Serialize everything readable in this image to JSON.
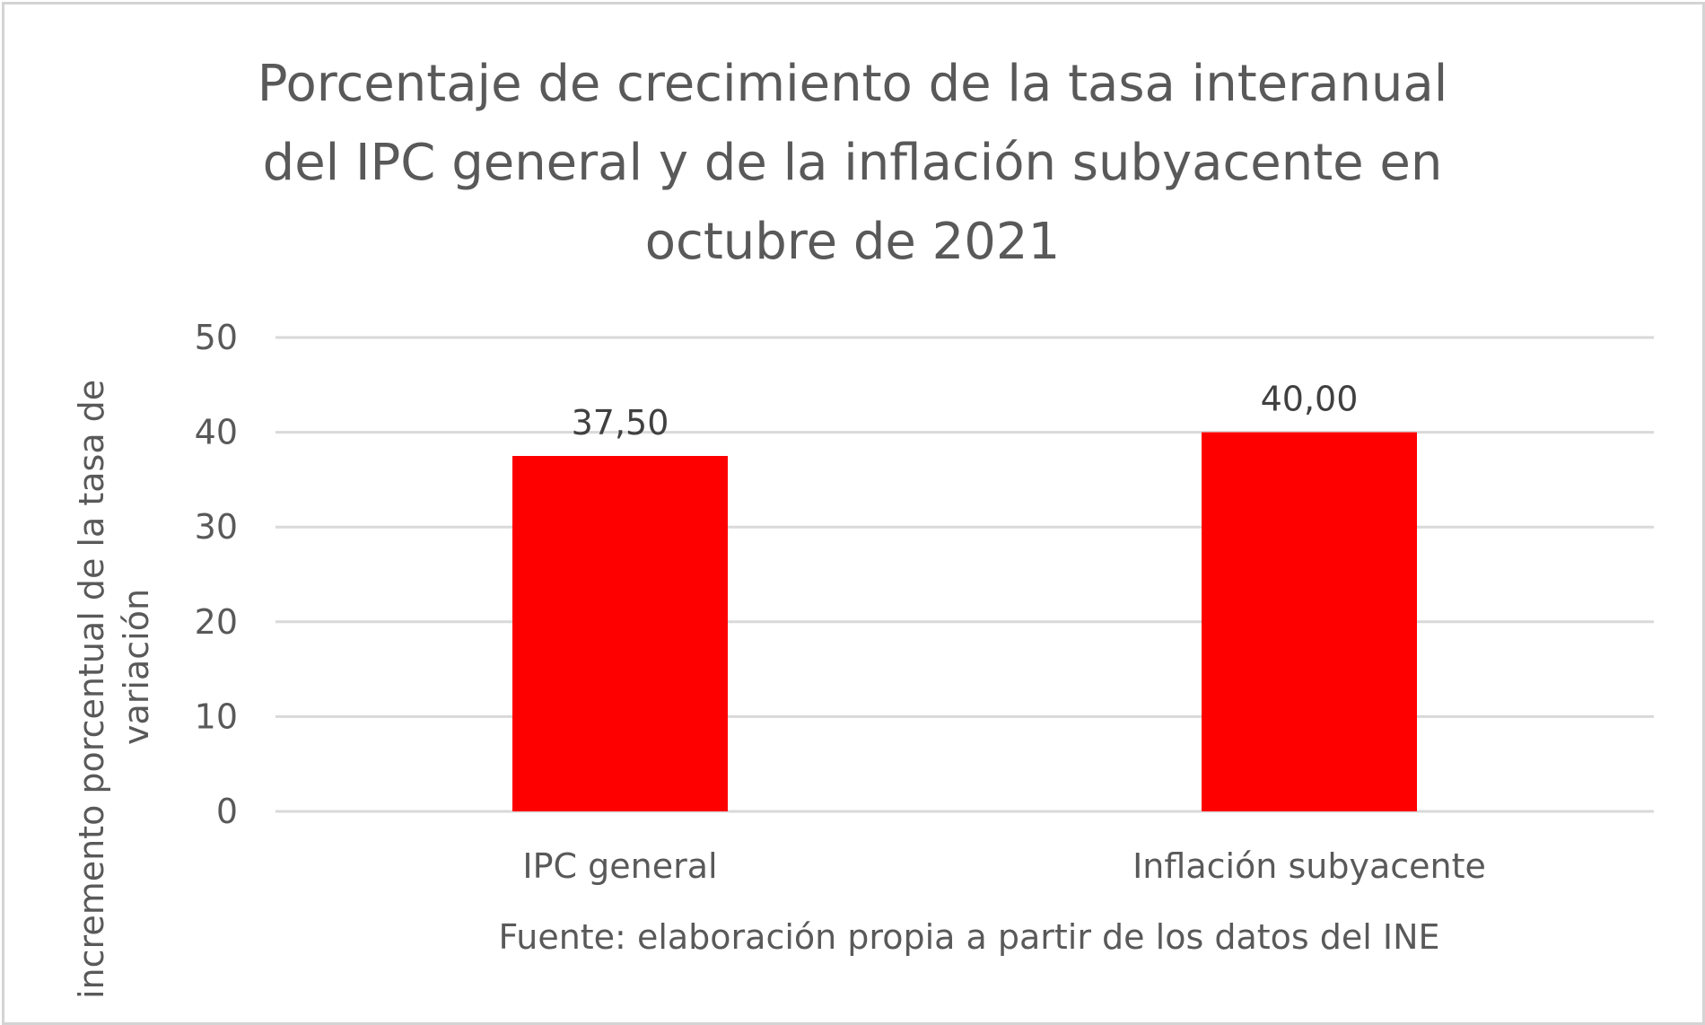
{
  "chart_data": {
    "type": "bar",
    "title_lines": [
      "Porcentaje de crecimiento de la tasa interanual",
      "del IPC general y de la inflación subyacente en",
      "octubre de 2021"
    ],
    "categories": [
      "IPC general",
      "Inflación subyacente"
    ],
    "values": [
      37.5,
      40.0
    ],
    "data_labels": [
      "37,50",
      "40,00"
    ],
    "ylabel_lines": [
      "incremento porcentual de la tasa de",
      "variación"
    ],
    "xlabel": "Fuente: elaboración propia a partir de los datos del INE",
    "ylim": [
      0,
      50
    ],
    "yticks": [
      0,
      10,
      20,
      30,
      40,
      50
    ],
    "ytick_labels": [
      "0",
      "10",
      "20",
      "30",
      "40",
      "50"
    ],
    "grid": true,
    "bar_color": "#ff0000",
    "grid_color": "#d9d9d9"
  }
}
